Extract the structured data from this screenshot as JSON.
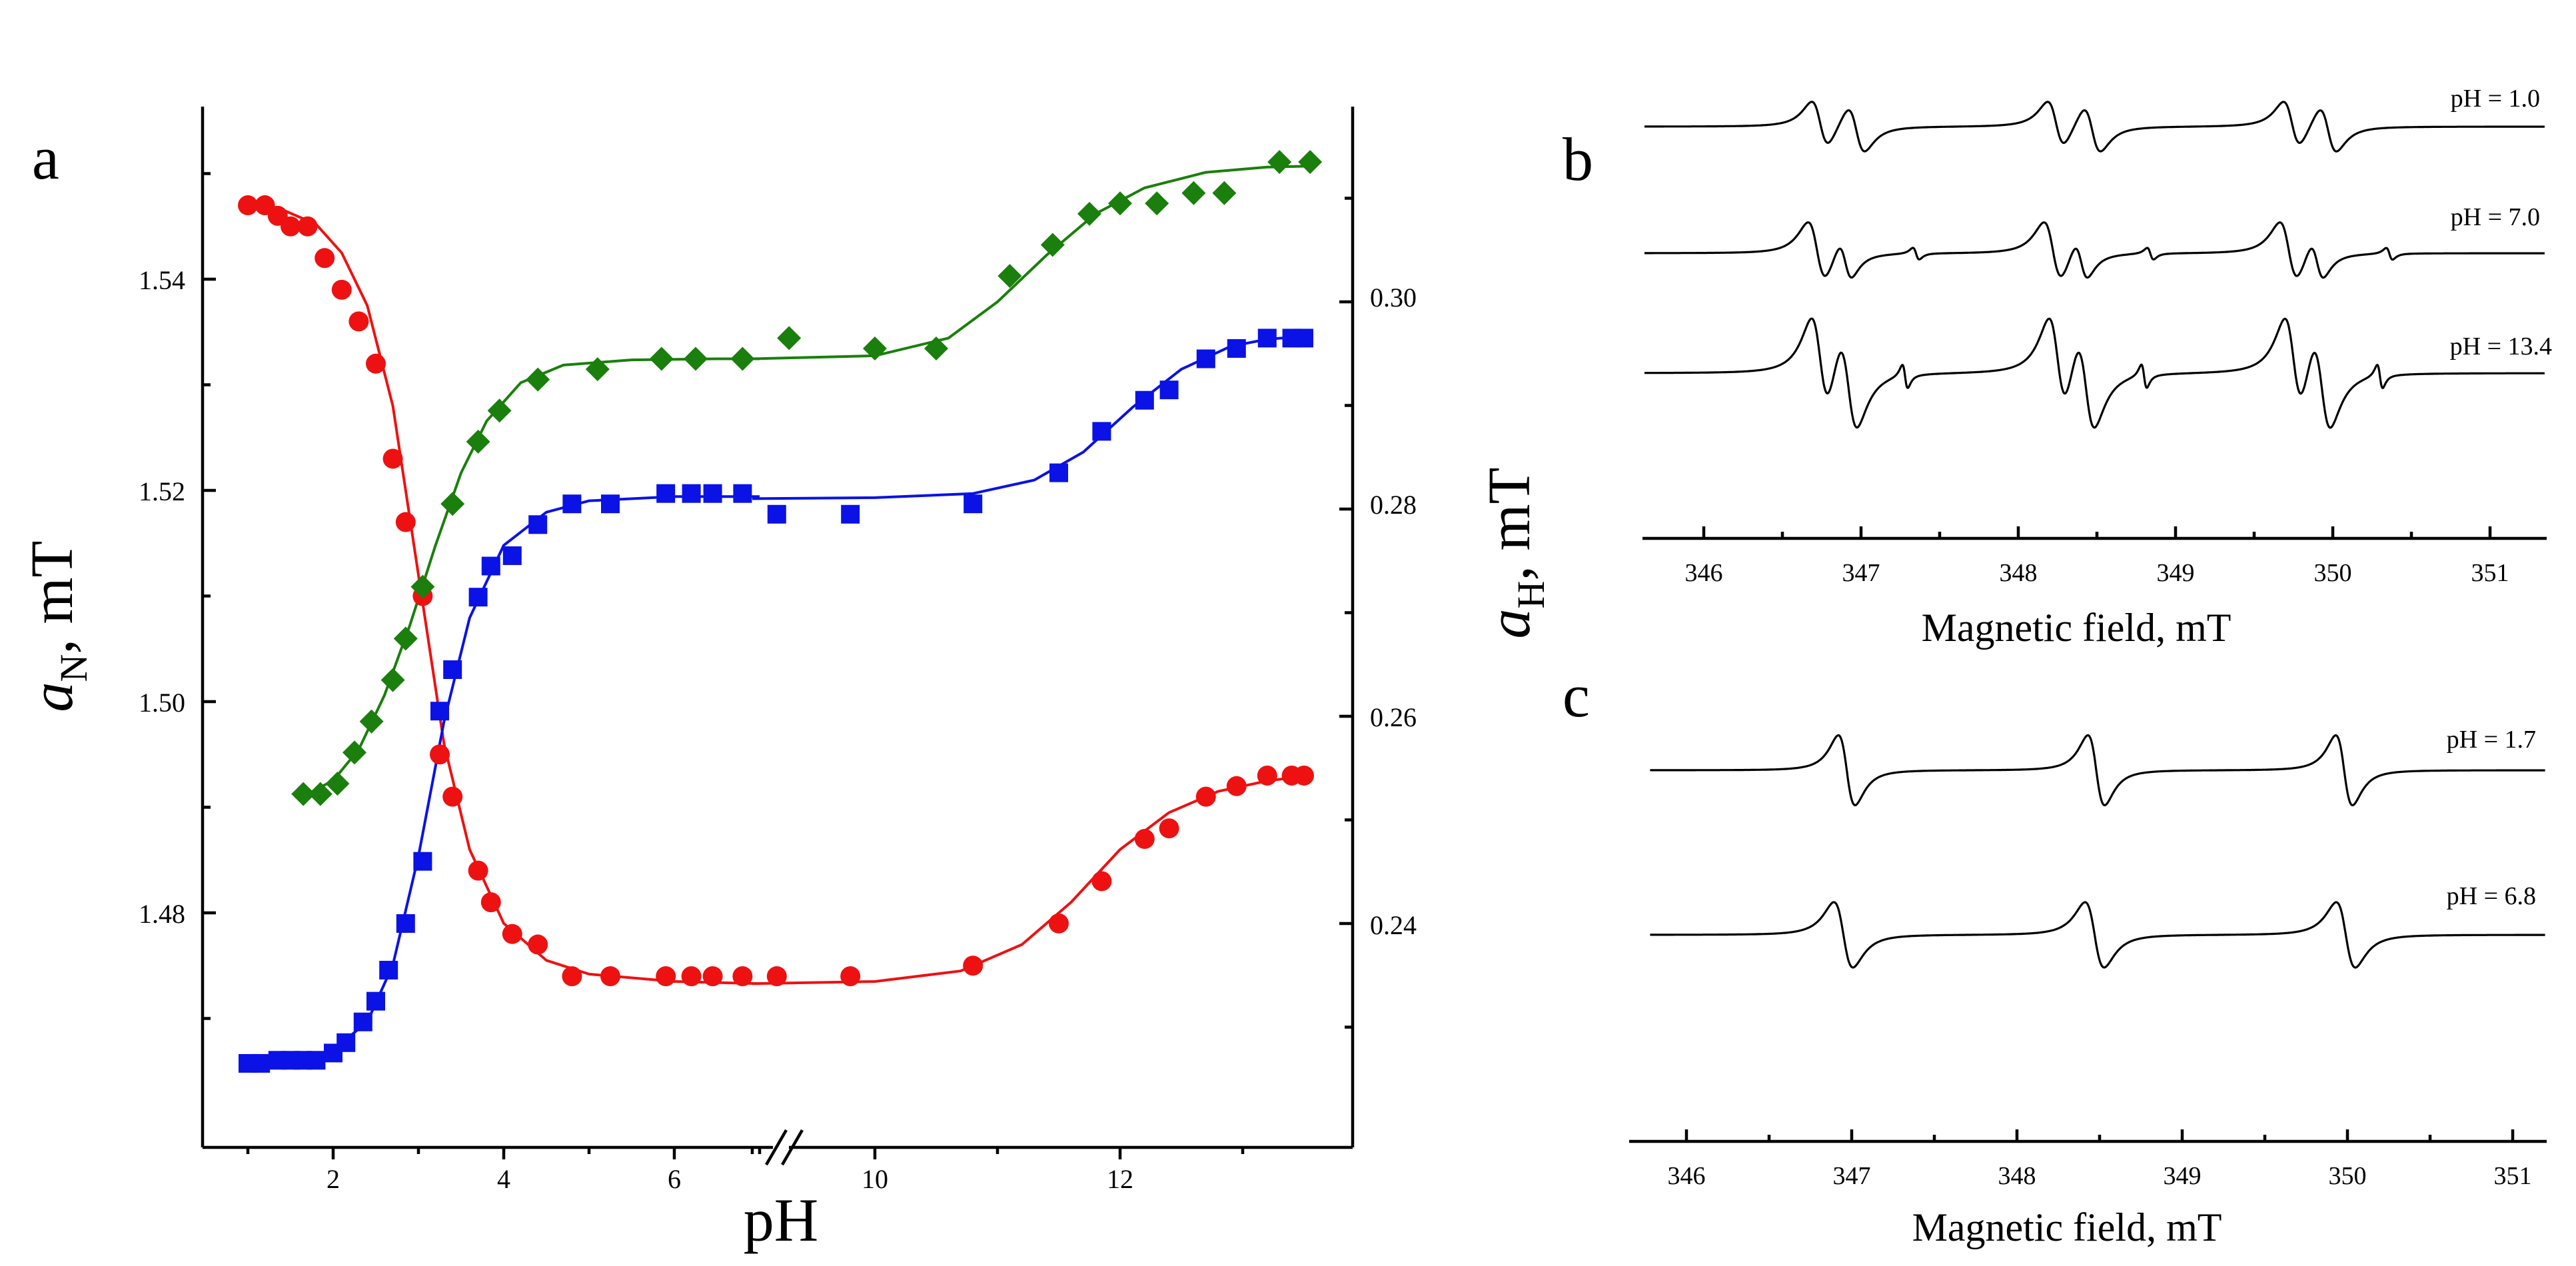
{
  "panel_labels": {
    "a": "a",
    "b": "b",
    "c": "c"
  },
  "colors": {
    "aN": "#ee1111",
    "aH_blue": "#0a12e6",
    "aH_green": "#1a7f0c",
    "spectrum": "#000000"
  },
  "chart_data": [
    {
      "panel": "a",
      "type": "scatter",
      "xlabel": "pH",
      "ylabel_left": {
        "main": "a",
        "sub": "N",
        "rest": ", mT"
      },
      "ylabel_right": {
        "main": "a",
        "sub": "H",
        "rest": ", mT"
      },
      "x_ticks": [
        "2",
        "4",
        "6",
        "10",
        "12"
      ],
      "x_ranges": {
        "segment1": [
          0.8,
          7.1
        ],
        "segment2": [
          8.6,
          13.7
        ]
      },
      "axis_break": "//",
      "ylim_left": [
        1.4605,
        1.5575
      ],
      "ylim_right": [
        0.2255,
        0.3155
      ],
      "yticks_left": [
        "1.48",
        "1.50",
        "1.52",
        "1.54"
      ],
      "yticks_right": [
        "0.24",
        "0.26",
        "0.28",
        "0.30"
      ],
      "grid": false,
      "series": [
        {
          "marker": "circle",
          "axis": "left",
          "points": [
            [
              1.0,
              1.547
            ],
            [
              1.2,
              1.547
            ],
            [
              1.35,
              1.546
            ],
            [
              1.5,
              1.545
            ],
            [
              1.7,
              1.545
            ],
            [
              1.9,
              1.542
            ],
            [
              2.1,
              1.539
            ],
            [
              2.3,
              1.536
            ],
            [
              2.5,
              1.532
            ],
            [
              2.7,
              1.523
            ],
            [
              2.85,
              1.517
            ],
            [
              3.05,
              1.51
            ],
            [
              3.25,
              1.495
            ],
            [
              3.4,
              1.491
            ],
            [
              3.7,
              1.484
            ],
            [
              3.85,
              1.481
            ],
            [
              4.1,
              1.478
            ],
            [
              4.4,
              1.477
            ],
            [
              4.8,
              1.474
            ],
            [
              5.25,
              1.474
            ],
            [
              5.9,
              1.474
            ],
            [
              6.2,
              1.474
            ],
            [
              6.45,
              1.474
            ],
            [
              6.8,
              1.474
            ],
            [
              9.2,
              1.474
            ],
            [
              9.8,
              1.474
            ],
            [
              10.8,
              1.475
            ],
            [
              11.5,
              1.479
            ],
            [
              11.85,
              1.483
            ],
            [
              12.2,
              1.487
            ],
            [
              12.4,
              1.488
            ],
            [
              12.7,
              1.491
            ],
            [
              12.95,
              1.492
            ],
            [
              13.2,
              1.493
            ],
            [
              13.4,
              1.493
            ],
            [
              13.5,
              1.493
            ]
          ],
          "fit": {
            "segment1": [
              [
                1.0,
                1.5472
              ],
              [
                1.4,
                1.5466
              ],
              [
                1.8,
                1.5452
              ],
              [
                2.1,
                1.5425
              ],
              [
                2.4,
                1.5375
              ],
              [
                2.7,
                1.528
              ],
              [
                3.0,
                1.512
              ],
              [
                3.3,
                1.496
              ],
              [
                3.6,
                1.486
              ],
              [
                4.0,
                1.479
              ],
              [
                4.5,
                1.4755
              ],
              [
                5.0,
                1.4742
              ],
              [
                6.0,
                1.4735
              ],
              [
                7.0,
                1.4733
              ]
            ],
            "segment2": [
              [
                9.0,
                1.4733
              ],
              [
                10.0,
                1.4735
              ],
              [
                10.7,
                1.4745
              ],
              [
                11.2,
                1.477
              ],
              [
                11.6,
                1.481
              ],
              [
                12.0,
                1.486
              ],
              [
                12.4,
                1.4895
              ],
              [
                12.8,
                1.4915
              ],
              [
                13.2,
                1.4925
              ],
              [
                13.55,
                1.493
              ]
            ]
          }
        },
        {
          "marker": "square",
          "axis": "right",
          "points": [
            [
              1.0,
              0.2265
            ],
            [
              1.15,
              0.2265
            ],
            [
              1.35,
              0.2268
            ],
            [
              1.5,
              0.2268
            ],
            [
              1.65,
              0.2268
            ],
            [
              1.8,
              0.2268
            ],
            [
              2.0,
              0.2275
            ],
            [
              2.15,
              0.2285
            ],
            [
              2.35,
              0.2305
            ],
            [
              2.5,
              0.2325
            ],
            [
              2.65,
              0.2355
            ],
            [
              2.85,
              0.24
            ],
            [
              3.05,
              0.246
            ],
            [
              3.25,
              0.2605
            ],
            [
              3.4,
              0.2645
            ],
            [
              3.7,
              0.2715
            ],
            [
              3.85,
              0.2745
            ],
            [
              4.1,
              0.2755
            ],
            [
              4.4,
              0.2785
            ],
            [
              4.8,
              0.2805
            ],
            [
              5.25,
              0.2805
            ],
            [
              5.9,
              0.2815
            ],
            [
              6.2,
              0.2815
            ],
            [
              6.45,
              0.2815
            ],
            [
              6.8,
              0.2815
            ],
            [
              9.2,
              0.2795
            ],
            [
              9.8,
              0.2795
            ],
            [
              10.8,
              0.2805
            ],
            [
              11.5,
              0.2835
            ],
            [
              11.85,
              0.2875
            ],
            [
              12.2,
              0.2905
            ],
            [
              12.4,
              0.2915
            ],
            [
              12.7,
              0.2945
            ],
            [
              12.95,
              0.2955
            ],
            [
              13.2,
              0.2965
            ],
            [
              13.4,
              0.2965
            ],
            [
              13.5,
              0.2965
            ]
          ],
          "fit": {
            "segment1": [
              [
                1.0,
                0.2263
              ],
              [
                1.5,
                0.2266
              ],
              [
                2.0,
                0.2278
              ],
              [
                2.4,
                0.2305
              ],
              [
                2.7,
                0.236
              ],
              [
                3.0,
                0.2465
              ],
              [
                3.3,
                0.2595
              ],
              [
                3.6,
                0.2695
              ],
              [
                4.0,
                0.2765
              ],
              [
                4.5,
                0.2797
              ],
              [
                5.0,
                0.2808
              ],
              [
                6.0,
                0.2812
              ],
              [
                7.0,
                0.2812
              ]
            ],
            "segment2": [
              [
                9.0,
                0.281
              ],
              [
                10.0,
                0.2811
              ],
              [
                10.8,
                0.2815
              ],
              [
                11.3,
                0.2828
              ],
              [
                11.7,
                0.2855
              ],
              [
                12.1,
                0.2898
              ],
              [
                12.5,
                0.2935
              ],
              [
                12.9,
                0.2957
              ],
              [
                13.2,
                0.2964
              ],
              [
                13.55,
                0.2967
              ]
            ]
          }
        },
        {
          "marker": "diamond",
          "axis": "right",
          "points": [
            [
              1.65,
              0.2525
            ],
            [
              1.85,
              0.2525
            ],
            [
              2.05,
              0.2535
            ],
            [
              2.25,
              0.2565
            ],
            [
              2.45,
              0.2595
            ],
            [
              2.7,
              0.2635
            ],
            [
              2.85,
              0.2675
            ],
            [
              3.05,
              0.2725
            ],
            [
              3.4,
              0.2805
            ],
            [
              3.7,
              0.2865
            ],
            [
              3.95,
              0.2895
            ],
            [
              4.4,
              0.2925
            ],
            [
              5.1,
              0.2935
            ],
            [
              5.85,
              0.2945
            ],
            [
              6.25,
              0.2945
            ],
            [
              6.8,
              0.2945
            ],
            [
              9.3,
              0.2965
            ],
            [
              10.0,
              0.2955
            ],
            [
              10.5,
              0.2955
            ],
            [
              11.1,
              0.3025
            ],
            [
              11.45,
              0.3055
            ],
            [
              11.75,
              0.3085
            ],
            [
              12.0,
              0.3095
            ],
            [
              12.3,
              0.3095
            ],
            [
              12.6,
              0.3105
            ],
            [
              12.85,
              0.3105
            ],
            [
              13.3,
              0.3135
            ],
            [
              13.55,
              0.3135
            ]
          ],
          "fit": {
            "segment1": [
              [
                1.7,
                0.2525
              ],
              [
                2.0,
                0.2538
              ],
              [
                2.3,
                0.2568
              ],
              [
                2.6,
                0.262
              ],
              [
                2.9,
                0.2688
              ],
              [
                3.2,
                0.2765
              ],
              [
                3.5,
                0.2835
              ],
              [
                3.8,
                0.2885
              ],
              [
                4.2,
                0.2922
              ],
              [
                4.7,
                0.2939
              ],
              [
                5.5,
                0.2944
              ],
              [
                6.5,
                0.2945
              ],
              [
                7.0,
                0.2945
              ]
            ],
            "segment2": [
              [
                9.0,
                0.2945
              ],
              [
                10.0,
                0.2948
              ],
              [
                10.6,
                0.2965
              ],
              [
                11.0,
                0.3
              ],
              [
                11.4,
                0.3045
              ],
              [
                11.8,
                0.3085
              ],
              [
                12.2,
                0.311
              ],
              [
                12.7,
                0.3125
              ],
              [
                13.2,
                0.313
              ],
              [
                13.55,
                0.3131
              ]
            ]
          }
        }
      ]
    },
    {
      "panel": "b",
      "type": "line",
      "xlabel": "Magnetic field, mT",
      "x_ticks": [
        "346",
        "347",
        "348",
        "349",
        "350",
        "351"
      ],
      "xlim": [
        345.6,
        351.35
      ],
      "grid": false,
      "series": [
        {
          "name": "pH = 1.0",
          "lines": [
            [
              346.74,
              0.4,
              0.95
            ],
            [
              346.97,
              0.4,
              0.95
            ],
            [
              348.24,
              0.4,
              0.95
            ],
            [
              348.47,
              0.4,
              0.95
            ],
            [
              349.74,
              0.4,
              0.95
            ],
            [
              349.97,
              0.4,
              0.95
            ]
          ]
        },
        {
          "name": "pH = 7.0",
          "lines": [
            [
              346.72,
              0.55,
              1.0
            ],
            [
              346.9,
              0.35,
              0.75
            ],
            [
              347.35,
              0.11,
              0.35
            ],
            [
              348.22,
              0.55,
              1.0
            ],
            [
              348.4,
              0.35,
              0.75
            ],
            [
              348.84,
              0.11,
              0.35
            ],
            [
              349.72,
              0.55,
              1.0
            ],
            [
              349.9,
              0.35,
              0.75
            ],
            [
              350.36,
              0.11,
              0.35
            ]
          ]
        },
        {
          "name": "pH = 13.4",
          "lines": [
            [
              346.74,
              0.7,
              1.0
            ],
            [
              346.92,
              0.7,
              1.0
            ],
            [
              347.28,
              0.18,
              0.3
            ],
            [
              348.25,
              0.7,
              1.0
            ],
            [
              348.43,
              0.7,
              1.0
            ],
            [
              348.8,
              0.18,
              0.3
            ],
            [
              349.75,
              0.7,
              1.0
            ],
            [
              349.93,
              0.7,
              1.0
            ],
            [
              350.3,
              0.18,
              0.3
            ]
          ]
        }
      ]
    },
    {
      "panel": "c",
      "type": "line",
      "xlabel": "Magnetic field, mT",
      "x_ticks": [
        "346",
        "347",
        "348",
        "349",
        "350",
        "351"
      ],
      "xlim": [
        345.72,
        351.22
      ],
      "grid": false,
      "series": [
        {
          "name": "pH = 1.7",
          "lines": [
            [
              346.97,
              1.0,
              0.88
            ],
            [
              348.48,
              1.0,
              0.88
            ],
            [
              349.98,
              1.0,
              0.88
            ]
          ]
        },
        {
          "name": "pH = 6.8",
          "lines": [
            [
              346.95,
              0.4,
              1.0
            ],
            [
              348.47,
              0.4,
              1.0
            ],
            [
              349.99,
              0.4,
              1.0
            ]
          ]
        }
      ]
    }
  ]
}
